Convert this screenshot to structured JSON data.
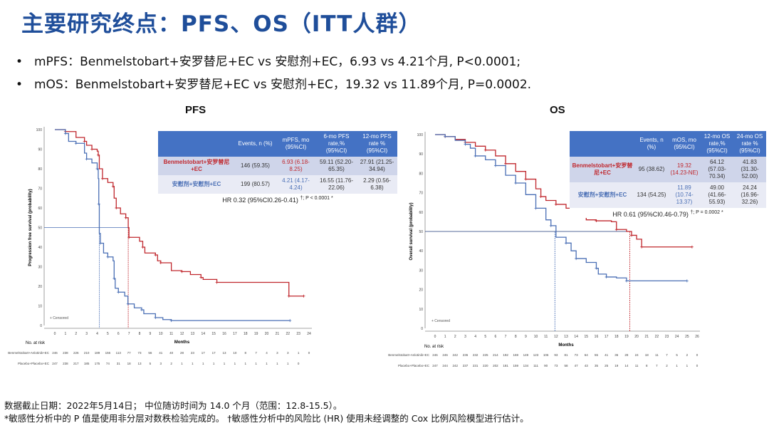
{
  "title": "主要研究终点：PFS、OS（ITT人群）",
  "bullets": [
    "mPFS：Benmelstobart+安罗替尼+EC vs 安慰剂+EC，6.93 vs 4.21个月, P<0.0001;",
    "mOS：Benmelstobart+安罗替尼+EC vs 安慰剂+EC，19.32 vs 11.89个月, P=0.0002."
  ],
  "colors": {
    "arm1": "#c0272d",
    "arm2": "#4a6fb5",
    "header": "#4472c4",
    "title": "#1f4e9a"
  },
  "footnotes": [
    "数据截止日期：2022年5月14日； 中位随访时间为 14.0 个月（范围：12.8-15.5）。",
    "*敏感性分析中的 P 值是使用非分层对数秩检验完成的。 †敏感性分析中的风险比 (HR) 使用未经调整的 Cox 比例风险模型进行估计。"
  ],
  "chart_data": [
    {
      "type": "line",
      "title": "PFS",
      "xlabel": "Months",
      "ylabel": "Progression free survival (probability)",
      "xlim": [
        0,
        24
      ],
      "ylim": [
        0,
        100
      ],
      "xticks": [
        0,
        1,
        2,
        3,
        4,
        5,
        6,
        7,
        8,
        9,
        10,
        11,
        12,
        13,
        14,
        15,
        16,
        17,
        18,
        19,
        20,
        21,
        22,
        23,
        24
      ],
      "yticks": [
        0,
        10,
        20,
        30,
        40,
        50,
        60,
        70,
        80,
        90,
        100
      ],
      "legend": "+ Censored",
      "median_line": 50,
      "table": {
        "headers": [
          "Events, n (%)",
          "mPFS, mo (95%CI)",
          "6-mo PFS rate,% (95%CI)",
          "12-mo PFS rate % (95%CI)"
        ],
        "rows": [
          {
            "name": "Benmelstobart+安罗替尼+EC",
            "cells": [
              "146 (59.35)",
              "6.93 (6.18-8.25)",
              "59.11 (52.20-65.35)",
              "27.91 (21.25-34.94)"
            ]
          },
          {
            "name": "安慰剂+安慰剂+EC",
            "cells": [
              "199 (80.57)",
              "4.21 (4.17-4.24)",
              "16.55 (11.76-22.06)",
              "2.29 (0.56-6.38)"
            ]
          }
        ],
        "hr": "HR 0.32 (95%CI0.26-0.41)",
        "p": "†; P < 0.0001 *"
      },
      "series": [
        {
          "median": 6.93,
          "points": [
            [
              0,
              100
            ],
            [
              1,
              99
            ],
            [
              2,
              96
            ],
            [
              2.8,
              94
            ],
            [
              3,
              92
            ],
            [
              3.5,
              90
            ],
            [
              4,
              89
            ],
            [
              4.1,
              87
            ],
            [
              4.2,
              80
            ],
            [
              4.5,
              75
            ],
            [
              5,
              73
            ],
            [
              5.5,
              71
            ],
            [
              5.6,
              65
            ],
            [
              5.8,
              60
            ],
            [
              6.2,
              57
            ],
            [
              6.7,
              55
            ],
            [
              6.93,
              50
            ],
            [
              7,
              45
            ],
            [
              8,
              43
            ],
            [
              8.3,
              40
            ],
            [
              8.5,
              37
            ],
            [
              9.5,
              36
            ],
            [
              9.7,
              33
            ],
            [
              10,
              32
            ],
            [
              11,
              28
            ],
            [
              12,
              27.5
            ],
            [
              12.8,
              26
            ],
            [
              13.8,
              24.5
            ],
            [
              14,
              23.5
            ],
            [
              15.3,
              22
            ],
            [
              22,
              22
            ],
            [
              22.1,
              15
            ],
            [
              23.5,
              15
            ]
          ]
        },
        {
          "median": 4.21,
          "points": [
            [
              0,
              100
            ],
            [
              1,
              98
            ],
            [
              1.3,
              94
            ],
            [
              2,
              93
            ],
            [
              2.8,
              88
            ],
            [
              3,
              85
            ],
            [
              3.5,
              83
            ],
            [
              4,
              80
            ],
            [
              4.1,
              75
            ],
            [
              4.15,
              62
            ],
            [
              4.2,
              47
            ],
            [
              4.3,
              42
            ],
            [
              4.6,
              37
            ],
            [
              5,
              35
            ],
            [
              5.5,
              33
            ],
            [
              5.6,
              24
            ],
            [
              5.7,
              19
            ],
            [
              6,
              17
            ],
            [
              6.6,
              15
            ],
            [
              6.9,
              11
            ],
            [
              7.5,
              9
            ],
            [
              8.2,
              8
            ],
            [
              8.4,
              6
            ],
            [
              9.5,
              4
            ],
            [
              10.2,
              3
            ],
            [
              11,
              2.5
            ],
            [
              22.2,
              2.5
            ]
          ]
        }
      ],
      "risk": {
        "label": "No. at risk",
        "rows": [
          {
            "name": "Benmelstobart+Anlotinib+EC",
            "values": [
              246,
              238,
              226,
              210,
              189,
              156,
              113,
              77,
              73,
              56,
              41,
              40,
              28,
              23,
              17,
              17,
              13,
              10,
              8,
              7,
              4,
              3,
              3,
              1,
              0
            ]
          },
          {
            "name": "Placebo+Placebo+EC",
            "values": [
              247,
              238,
              217,
              185,
              175,
              74,
              31,
              18,
              13,
              5,
              3,
              2,
              1,
              1,
              1,
              1,
              1,
              1,
              1,
              1,
              1,
              1,
              1,
              0
            ]
          }
        ]
      }
    },
    {
      "type": "line",
      "title": "OS",
      "xlabel": "Months",
      "ylabel": "Overall survival (probability)",
      "xlim": [
        0,
        26
      ],
      "ylim": [
        0,
        100
      ],
      "xticks": [
        0,
        1,
        2,
        3,
        4,
        5,
        6,
        7,
        8,
        9,
        10,
        11,
        12,
        13,
        14,
        15,
        16,
        17,
        18,
        19,
        20,
        21,
        22,
        23,
        24,
        25,
        26
      ],
      "yticks": [
        0,
        10,
        20,
        30,
        40,
        50,
        60,
        70,
        80,
        90,
        100
      ],
      "legend": "+ Censored",
      "median_line": 50,
      "table": {
        "headers": [
          "Events, n (%)",
          "mOS, mo (95%CI)",
          "12-mo OS rate,% (95%CI)",
          "24-mo OS rate % (95%CI)"
        ],
        "rows": [
          {
            "name": "Benmelstobart+安罗替尼+EC",
            "cells": [
              "95 (38.62)",
              "19.32 (14.23-NE)",
              "64.12 (57.03-70.34)",
              "41.83 (31.30-52.00)"
            ]
          },
          {
            "name": "安慰剂+安慰剂+EC",
            "cells": [
              "134 (54.25)",
              "11.89 (10.74-13.37)",
              "49.00 (41.66-55.93)",
              "24.24 (16.96-32.26)"
            ]
          }
        ],
        "hr": "HR 0.61 (95%CI0.46-0.79)",
        "p": "†; P = 0.0002 *"
      },
      "series": [
        {
          "median": 19.32,
          "points": [
            [
              0,
              100
            ],
            [
              1,
              99
            ],
            [
              2,
              97.5
            ],
            [
              3,
              96
            ],
            [
              4,
              94
            ],
            [
              5,
              92
            ],
            [
              6,
              89
            ],
            [
              7,
              85
            ],
            [
              8,
              81
            ],
            [
              9,
              77
            ],
            [
              10,
              72
            ],
            [
              10.5,
              68
            ],
            [
              11,
              66
            ],
            [
              12,
              64
            ],
            [
              13,
              62
            ],
            [
              14,
              58
            ],
            [
              15,
              56
            ],
            [
              16,
              55.5
            ],
            [
              17.5,
              55
            ],
            [
              18,
              51
            ],
            [
              19,
              50
            ],
            [
              19.5,
              48
            ],
            [
              20,
              46
            ],
            [
              20.5,
              42
            ],
            [
              25.5,
              42
            ]
          ]
        },
        {
          "median": 11.89,
          "points": [
            [
              0,
              100
            ],
            [
              1,
              99
            ],
            [
              2,
              97
            ],
            [
              3,
              95
            ],
            [
              3.5,
              93
            ],
            [
              4,
              89
            ],
            [
              5,
              87
            ],
            [
              6,
              84
            ],
            [
              7,
              79
            ],
            [
              8,
              75
            ],
            [
              9,
              69
            ],
            [
              10,
              62
            ],
            [
              11,
              56
            ],
            [
              11.5,
              53
            ],
            [
              12,
              47
            ],
            [
              13,
              44
            ],
            [
              13.5,
              40
            ],
            [
              14,
              36
            ],
            [
              15,
              34
            ],
            [
              16,
              31
            ],
            [
              16.2,
              28
            ],
            [
              17,
              26.5
            ],
            [
              18,
              26
            ],
            [
              19,
              24.5
            ],
            [
              25,
              24.5
            ]
          ]
        }
      ],
      "risk": {
        "label": "No. at risk",
        "rows": [
          {
            "name": "Benmelstobart+Anlotinib+EC",
            "values": [
              246,
              246,
              242,
              236,
              232,
              225,
              214,
              192,
              169,
              149,
              123,
              106,
              93,
              81,
              73,
              64,
              55,
              41,
              36,
              28,
              24,
              18,
              11,
              7,
              5,
              2,
              0
            ]
          },
          {
            "name": "Placebo+Placebo+EC",
            "values": [
              247,
              244,
              242,
              237,
              231,
              220,
              202,
              181,
              159,
              134,
              111,
              90,
              73,
              58,
              47,
              43,
              35,
              25,
              19,
              14,
              11,
              8,
              7,
              2,
              1,
              1,
              0
            ]
          }
        ]
      }
    }
  ]
}
